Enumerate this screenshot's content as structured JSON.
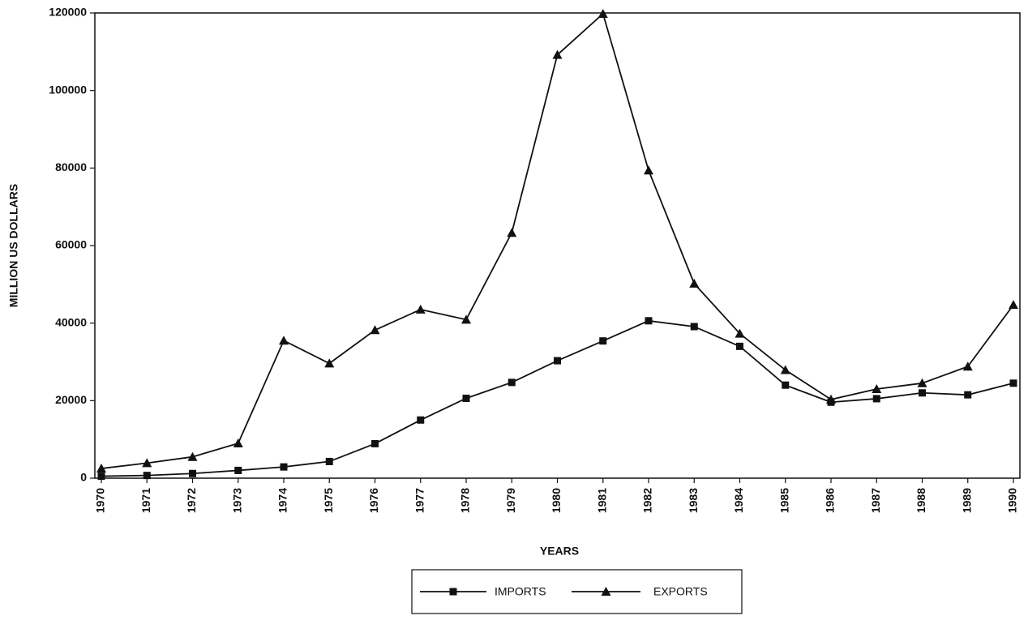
{
  "chart_data": {
    "type": "line",
    "x_label": "YEARS",
    "y_label": "MILLION US DOLLARS",
    "categories": [
      "1970",
      "1971",
      "1972",
      "1973",
      "1974",
      "1975",
      "1976",
      "1977",
      "1978",
      "1979",
      "1980",
      "1981",
      "1982",
      "1983",
      "1984",
      "1985",
      "1986",
      "1987",
      "1988",
      "1989",
      "1990"
    ],
    "series": [
      {
        "name": "IMPORTS",
        "color": "#111111",
        "marker": "square",
        "values": [
          500,
          700,
          1200,
          2000,
          2900,
          4300,
          8900,
          15000,
          20600,
          24700,
          30300,
          35400,
          40600,
          39100,
          34000,
          24000,
          19600,
          20500,
          22000,
          21500,
          24500
        ]
      },
      {
        "name": "EXPORTS",
        "color": "#111111",
        "marker": "triangle",
        "values": [
          2500,
          3900,
          5500,
          9000,
          35500,
          29600,
          38200,
          43500,
          40900,
          63300,
          109200,
          119800,
          79400,
          50200,
          37300,
          27900,
          20300,
          23000,
          24500,
          28800,
          44700
        ]
      }
    ],
    "ylim": [
      0,
      120000
    ],
    "yticks": [
      0,
      20000,
      40000,
      60000,
      80000,
      100000,
      120000
    ],
    "legend": "bottom"
  }
}
